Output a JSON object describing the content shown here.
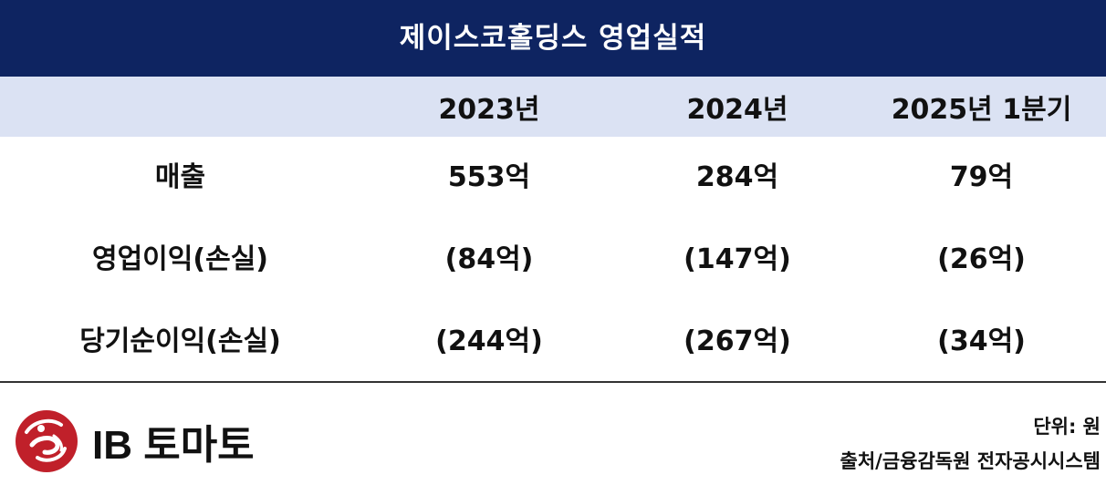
{
  "title": "제이스코홀딩스 영업실적",
  "header": {
    "label": "",
    "columns": [
      "2023년",
      "2024년",
      "2025년 1분기"
    ]
  },
  "rows": [
    {
      "label": "매출",
      "values": [
        "553억",
        "284억",
        "79억"
      ]
    },
    {
      "label": "영업이익(손실)",
      "values": [
        "(84억)",
        "(147억)",
        "(26억)"
      ]
    },
    {
      "label": "당기순이익(손실)",
      "values": [
        "(244억)",
        "(267억)",
        "(34억)"
      ]
    }
  ],
  "footer": {
    "unit": "단위: 원",
    "source": "출처/금융감독원 전자공시시스템"
  },
  "logo": {
    "text": "IB 토마토",
    "icon": "ib-tomato-logo-icon"
  },
  "colors": {
    "title_bg": "#0e2461",
    "header_bg": "#dbe2f3",
    "logo_red": "#c0202a"
  }
}
